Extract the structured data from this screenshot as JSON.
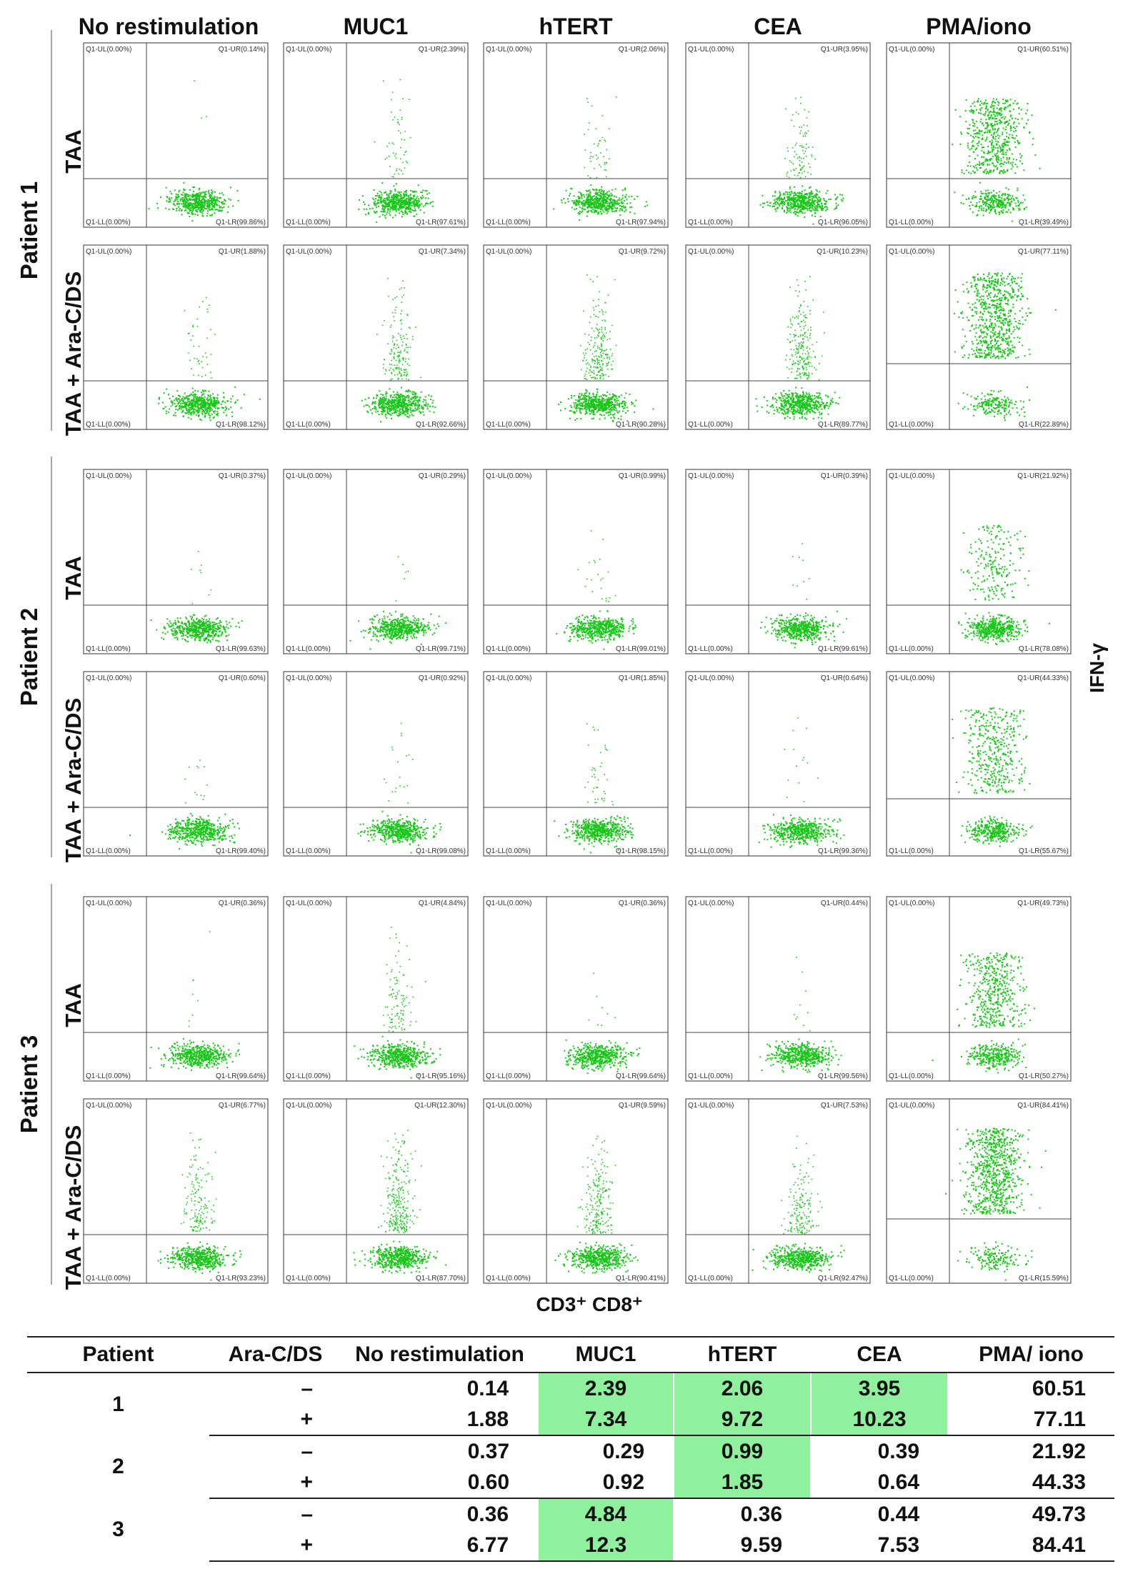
{
  "figure": {
    "column_headers": [
      "No restimulation",
      "MUC1",
      "hTERT",
      "CEA",
      "PMA/iono"
    ],
    "row_labels": [
      "TAA",
      "TAA + Ara-C/DS"
    ],
    "patients": [
      "Patient 1",
      "Patient 2",
      "Patient 3"
    ],
    "x_axis_label": "CD3⁺ CD8⁺",
    "y_axis_label": "IFN-γ",
    "marker_color": "#18c618",
    "panels": [
      [
        [
          {
            "ul": "Q1-UL(0.00%)",
            "ur": "Q1-UR(0.14%)",
            "ll": "Q1-LL(0.00%)",
            "lr": "Q1-LR(99.86%)",
            "ur_pct": 0.14
          },
          {
            "ul": "Q1-UL(0.00%)",
            "ur": "Q1-UR(2.39%)",
            "ll": "Q1-LL(0.00%)",
            "lr": "Q1-LR(97.61%)",
            "ur_pct": 2.39
          },
          {
            "ul": "Q1-UL(0.00%)",
            "ur": "Q1-UR(2.06%)",
            "ll": "Q1-LL(0.00%)",
            "lr": "Q1-LR(97.94%)",
            "ur_pct": 2.06
          },
          {
            "ul": "Q1-UL(0.00%)",
            "ur": "Q1-UR(3.95%)",
            "ll": "Q1-LL(0.00%)",
            "lr": "Q1-LR(96.05%)",
            "ur_pct": 3.95
          },
          {
            "ul": "Q1-UL(0.00%)",
            "ur": "Q1-UR(60.51%)",
            "ll": "Q1-LL(0.00%)",
            "lr": "Q1-LR(39.49%)",
            "ur_pct": 60.51
          }
        ],
        [
          {
            "ul": "Q1-UL(0.00%)",
            "ur": "Q1-UR(1.88%)",
            "ll": "Q1-LL(0.00%)",
            "lr": "Q1-LR(98.12%)",
            "ur_pct": 1.88
          },
          {
            "ul": "Q1-UL(0.00%)",
            "ur": "Q1-UR(7.34%)",
            "ll": "Q1-LL(0.00%)",
            "lr": "Q1-LR(92.66%)",
            "ur_pct": 7.34
          },
          {
            "ul": "Q1-UL(0.00%)",
            "ur": "Q1-UR(9.72%)",
            "ll": "Q1-LL(0.00%)",
            "lr": "Q1-LR(90.28%)",
            "ur_pct": 9.72
          },
          {
            "ul": "Q1-UL(0.00%)",
            "ur": "Q1-UR(10.23%)",
            "ll": "Q1-LL(0.00%)",
            "lr": "Q1-LR(89.77%)",
            "ur_pct": 10.23
          },
          {
            "ul": "Q1-UL(0.00%)",
            "ur": "Q1-UR(77.11%)",
            "ll": "Q1-LL(0.00%)",
            "lr": "Q1-LR(22.89%)",
            "ur_pct": 77.11
          }
        ]
      ],
      [
        [
          {
            "ul": "Q1-UL(0.00%)",
            "ur": "Q1-UR(0.37%)",
            "ll": "Q1-LL(0.00%)",
            "lr": "Q1-LR(99.63%)",
            "ur_pct": 0.37
          },
          {
            "ul": "Q1-UL(0.00%)",
            "ur": "Q1-UR(0.29%)",
            "ll": "Q1-LL(0.00%)",
            "lr": "Q1-LR(99.71%)",
            "ur_pct": 0.29
          },
          {
            "ul": "Q1-UL(0.00%)",
            "ur": "Q1-UR(0.99%)",
            "ll": "Q1-LL(0.00%)",
            "lr": "Q1-LR(99.01%)",
            "ur_pct": 0.99
          },
          {
            "ul": "Q1-UL(0.00%)",
            "ur": "Q1-UR(0.39%)",
            "ll": "Q1-LL(0.00%)",
            "lr": "Q1-LR(99.61%)",
            "ur_pct": 0.39
          },
          {
            "ul": "Q1-UL(0.00%)",
            "ur": "Q1-UR(21.92%)",
            "ll": "Q1-LL(0.00%)",
            "lr": "Q1-LR(78.08%)",
            "ur_pct": 21.92
          }
        ],
        [
          {
            "ul": "Q1-UL(0.00%)",
            "ur": "Q1-UR(0.60%)",
            "ll": "Q1-LL(0.00%)",
            "lr": "Q1-LR(99.40%)",
            "ur_pct": 0.6
          },
          {
            "ul": "Q1-UL(0.00%)",
            "ur": "Q1-UR(0.92%)",
            "ll": "Q1-LL(0.00%)",
            "lr": "Q1-LR(99.08%)",
            "ur_pct": 0.92
          },
          {
            "ul": "Q1-UL(0.00%)",
            "ur": "Q1-UR(1.85%)",
            "ll": "Q1-LL(0.00%)",
            "lr": "Q1-LR(98.15%)",
            "ur_pct": 1.85
          },
          {
            "ul": "Q1-UL(0.00%)",
            "ur": "Q1-UR(0.64%)",
            "ll": "Q1-LL(0.00%)",
            "lr": "Q1-LR(99.36%)",
            "ur_pct": 0.64
          },
          {
            "ul": "Q1-UL(0.00%)",
            "ur": "Q1-UR(44.33%)",
            "ll": "Q1-LL(0.00%)",
            "lr": "Q1-LR(55.67%)",
            "ur_pct": 44.33
          }
        ]
      ],
      [
        [
          {
            "ul": "Q1-UL(0.00%)",
            "ur": "Q1-UR(0.36%)",
            "ll": "Q1-LL(0.00%)",
            "lr": "Q1-LR(99.64%)",
            "ur_pct": 0.36
          },
          {
            "ul": "Q1-UL(0.00%)",
            "ur": "Q1-UR(4.84%)",
            "ll": "Q1-LL(0.00%)",
            "lr": "Q1-LR(95.16%)",
            "ur_pct": 4.84
          },
          {
            "ul": "Q1-UL(0.00%)",
            "ur": "Q1-UR(0.36%)",
            "ll": "Q1-LL(0.00%)",
            "lr": "Q1-LR(99.64%)",
            "ur_pct": 0.36
          },
          {
            "ul": "Q1-UL(0.00%)",
            "ur": "Q1-UR(0.44%)",
            "ll": "Q1-LL(0.00%)",
            "lr": "Q1-LR(99.56%)",
            "ur_pct": 0.44
          },
          {
            "ul": "Q1-UL(0.00%)",
            "ur": "Q1-UR(49.73%)",
            "ll": "Q1-LL(0.00%)",
            "lr": "Q1-LR(50.27%)",
            "ur_pct": 49.73
          }
        ],
        [
          {
            "ul": "Q1-UL(0.00%)",
            "ur": "Q1-UR(6.77%)",
            "ll": "Q1-LL(0.00%)",
            "lr": "Q1-LR(93.23%)",
            "ur_pct": 6.77
          },
          {
            "ul": "Q1-UL(0.00%)",
            "ur": "Q1-UR(12.30%)",
            "ll": "Q1-LL(0.00%)",
            "lr": "Q1-LR(87.70%)",
            "ur_pct": 12.3
          },
          {
            "ul": "Q1-UL(0.00%)",
            "ur": "Q1-UR(9.59%)",
            "ll": "Q1-LL(0.00%)",
            "lr": "Q1-LR(90.41%)",
            "ur_pct": 9.59
          },
          {
            "ul": "Q1-UL(0.00%)",
            "ur": "Q1-UR(7.53%)",
            "ll": "Q1-LL(0.00%)",
            "lr": "Q1-LR(92.47%)",
            "ur_pct": 7.53
          },
          {
            "ul": "Q1-UL(0.00%)",
            "ur": "Q1-UR(84.41%)",
            "ll": "Q1-LL(0.00%)",
            "lr": "Q1-LR(15.59%)",
            "ur_pct": 84.41
          }
        ]
      ]
    ]
  },
  "table": {
    "headers": [
      "Patient",
      "Ara-C/DS",
      "No restimulation",
      "MUC1",
      "hTERT",
      "CEA",
      "PMA/ iono"
    ],
    "highlight_color": "#8ff09d",
    "groups": [
      {
        "patient": "1",
        "rows": [
          {
            "sign": "–",
            "values": [
              "0.14",
              "2.39",
              "2.06",
              "3.95",
              "60.51"
            ],
            "highlight": [
              false,
              true,
              true,
              true,
              false
            ]
          },
          {
            "sign": "+",
            "values": [
              "1.88",
              "7.34",
              "9.72",
              "10.23",
              "77.11"
            ],
            "highlight": [
              false,
              true,
              true,
              true,
              false
            ]
          }
        ]
      },
      {
        "patient": "2",
        "rows": [
          {
            "sign": "–",
            "values": [
              "0.37",
              "0.29",
              "0.99",
              "0.39",
              "21.92"
            ],
            "highlight": [
              false,
              false,
              true,
              false,
              false
            ]
          },
          {
            "sign": "+",
            "values": [
              "0.60",
              "0.92",
              "1.85",
              "0.64",
              "44.33"
            ],
            "highlight": [
              false,
              false,
              true,
              false,
              false
            ]
          }
        ]
      },
      {
        "patient": "3",
        "rows": [
          {
            "sign": "–",
            "values": [
              "0.36",
              "4.84",
              "0.36",
              "0.44",
              "49.73"
            ],
            "highlight": [
              false,
              true,
              false,
              false,
              false
            ]
          },
          {
            "sign": "+",
            "values": [
              "6.77",
              "12.3",
              "9.59",
              "7.53",
              "84.41"
            ],
            "highlight": [
              false,
              true,
              false,
              false,
              false
            ]
          }
        ]
      }
    ]
  }
}
